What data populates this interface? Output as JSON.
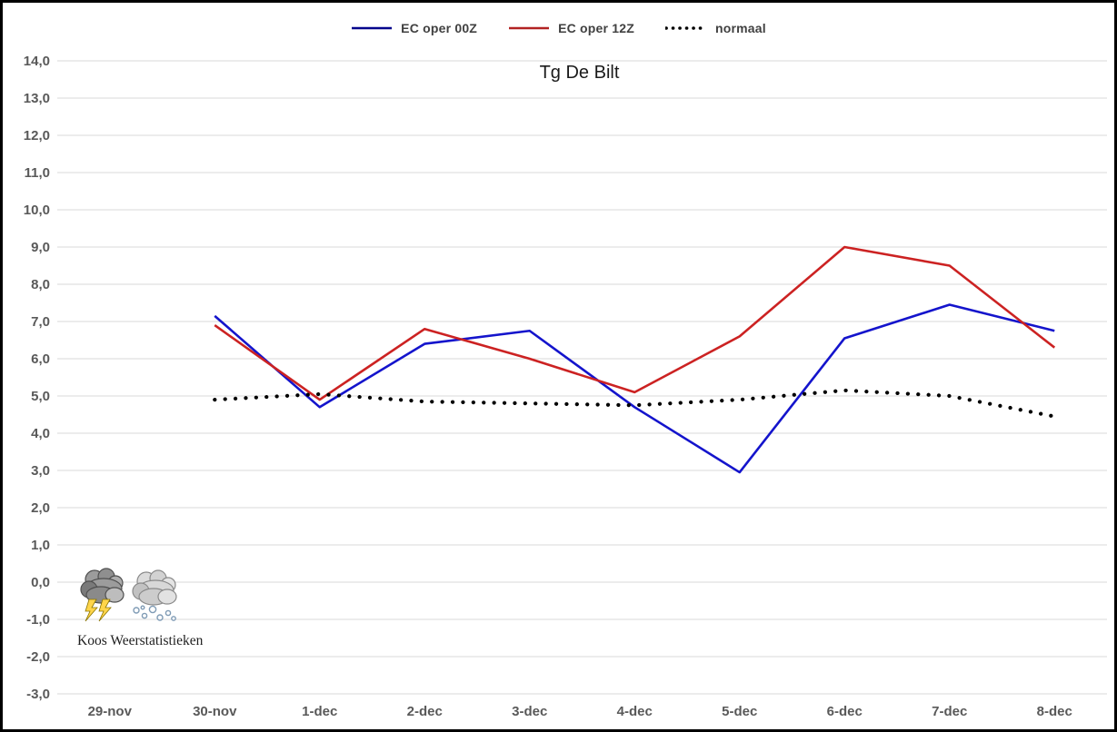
{
  "window": {
    "background": "#FFFFFF",
    "border_color": "#000000"
  },
  "chart_data": {
    "type": "line",
    "title": "Tg De Bilt",
    "xlabel": "",
    "ylabel": "",
    "categories": [
      "29-nov",
      "30-nov",
      "1-dec",
      "2-dec",
      "3-dec",
      "4-dec",
      "5-dec",
      "6-dec",
      "7-dec",
      "8-dec"
    ],
    "series": [
      {
        "name": "EC oper 00Z",
        "style": "solid",
        "color": "#1414CC",
        "legend_color": "#00008B",
        "values": [
          null,
          7.15,
          4.7,
          6.4,
          6.75,
          4.7,
          2.95,
          6.55,
          7.45,
          6.75
        ]
      },
      {
        "name": "EC oper 12Z",
        "style": "solid",
        "color": "#CC2222",
        "legend_color": "#B22222",
        "values": [
          null,
          6.9,
          4.9,
          6.8,
          6.0,
          5.1,
          6.6,
          9.0,
          8.5,
          6.3
        ]
      },
      {
        "name": "normaal",
        "style": "dotted",
        "color": "#000000",
        "legend_color": "#000000",
        "values": [
          null,
          4.9,
          5.05,
          4.85,
          4.8,
          4.75,
          4.9,
          5.15,
          5.0,
          4.45
        ]
      }
    ],
    "ylim": [
      -3.0,
      14.0
    ],
    "ytick_step": 1.0,
    "decimal_separator": ",",
    "ytick_labels": [
      "14,0",
      "13,0",
      "12,0",
      "11,0",
      "10,0",
      "9,0",
      "8,0",
      "7,0",
      "6,0",
      "5,0",
      "4,0",
      "3,0",
      "2,0",
      "1,0",
      "0,0",
      "-1,0",
      "-2,0",
      "-3,0"
    ],
    "grid": "horizontal",
    "legend_position": "top-center"
  },
  "branding": {
    "credit": "Koos Weerstatistieken",
    "icons": [
      "thunderstorm-icon",
      "snow-icon"
    ]
  },
  "colors": {
    "axis_label": "#595959",
    "gridline": "#D9D9D9",
    "title": "#1A1A1A",
    "legend_text": "#404040",
    "lightning": "#FFD54A"
  }
}
